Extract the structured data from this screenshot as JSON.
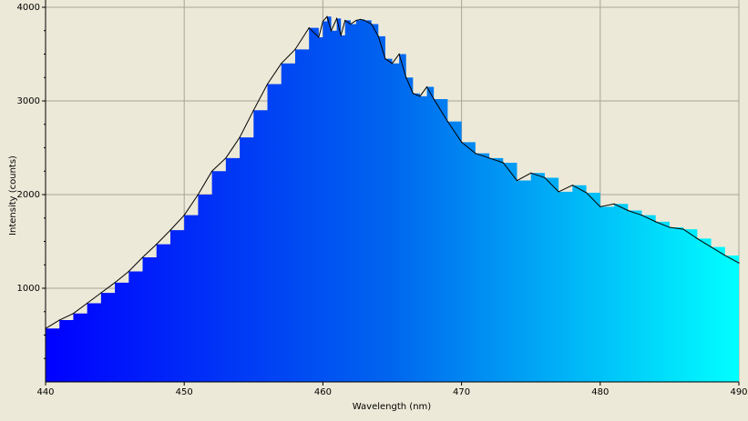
{
  "chart_data": {
    "type": "area",
    "title": "",
    "xlabel": "Wavelength (nm)",
    "ylabel": "Intensity (counts)",
    "xlim": [
      440,
      490
    ],
    "ylim": [
      0,
      4000
    ],
    "x_ticks": [
      440,
      450,
      460,
      470,
      480,
      490
    ],
    "y_ticks": [
      1000,
      2000,
      3000,
      4000
    ],
    "x_tick_labels": [
      "440",
      "450",
      "460",
      "470",
      "480",
      "490"
    ],
    "y_tick_labels": [
      "1000",
      "2000",
      "3000",
      "4000"
    ],
    "grid": true,
    "fill_gradient": [
      "#0000ff",
      "#0066ee",
      "#00ffff"
    ],
    "line_color": "#000000",
    "background_color": "#ece9d8",
    "series": [
      {
        "x": [
          440,
          441,
          442,
          443,
          444,
          445,
          446,
          447,
          448,
          449,
          450,
          451,
          452,
          453,
          454,
          455,
          456,
          457,
          458,
          459,
          459.7,
          460,
          460.3,
          460.6,
          461,
          461.3,
          461.6,
          462,
          462.4,
          462.7,
          463,
          463.5,
          464,
          464.5,
          465,
          465.5,
          466,
          466.5,
          467,
          467.5,
          468,
          469,
          470,
          471,
          472,
          473,
          474,
          475,
          476,
          477,
          478,
          479,
          480,
          481,
          482,
          483,
          484,
          485,
          486,
          487,
          488,
          489,
          490
        ],
        "values": [
          570,
          660,
          730,
          840,
          950,
          1060,
          1180,
          1330,
          1470,
          1620,
          1780,
          2000,
          2250,
          2390,
          2610,
          2900,
          3180,
          3400,
          3550,
          3780,
          3680,
          3850,
          3900,
          3750,
          3880,
          3700,
          3860,
          3820,
          3860,
          3870,
          3860,
          3820,
          3690,
          3450,
          3400,
          3500,
          3250,
          3080,
          3050,
          3150,
          3020,
          2780,
          2560,
          2440,
          2390,
          2340,
          2150,
          2230,
          2180,
          2030,
          2100,
          2020,
          1870,
          1900,
          1830,
          1780,
          1710,
          1650,
          1630,
          1530,
          1440,
          1350,
          1270
        ]
      }
    ]
  }
}
